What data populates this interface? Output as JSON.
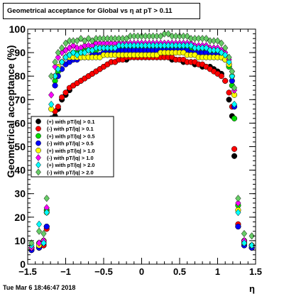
{
  "title": "Geometrical acceptance for Global vs  η at pT > 0.11",
  "footer": "Tue Mar  6 18:46:47 2018",
  "chart_data": {
    "type": "scatter",
    "title": "Geometrical acceptance for Global vs  η at pT > 0.11",
    "xlabel": "η",
    "ylabel": "Geometrical acceptance (%)",
    "xlim": [
      -1.5,
      1.5
    ],
    "ylim": [
      0,
      100
    ],
    "x_ticks": [
      "−1.5",
      "−1",
      "−0.5",
      "0",
      "0.5",
      "1",
      "1.5"
    ],
    "y_ticks": [
      "0",
      "10",
      "20",
      "30",
      "40",
      "50",
      "60",
      "70",
      "80",
      "90",
      "100"
    ],
    "grid": false,
    "legend_position": "left-middle",
    "series": [
      {
        "name": "(+) with pT/|q| > 0.1",
        "color": "#000000",
        "marker": "circle",
        "x": [
          -1.45,
          -1.35,
          -1.29,
          -1.25,
          -1.19,
          -1.14,
          -1.1,
          -1.05,
          -1.0,
          -0.95,
          -0.9,
          -0.85,
          -0.8,
          -0.75,
          -0.7,
          -0.65,
          -0.6,
          -0.55,
          -0.5,
          -0.45,
          -0.4,
          -0.35,
          -0.3,
          -0.25,
          -0.2,
          -0.15,
          -0.1,
          -0.05,
          0.0,
          0.05,
          0.1,
          0.15,
          0.2,
          0.25,
          0.3,
          0.35,
          0.4,
          0.45,
          0.5,
          0.55,
          0.6,
          0.65,
          0.7,
          0.75,
          0.8,
          0.85,
          0.9,
          0.95,
          1.0,
          1.05,
          1.1,
          1.15,
          1.19,
          1.22,
          1.27,
          1.35,
          1.45
        ],
        "y": [
          6,
          7,
          8,
          16,
          52,
          63,
          66,
          70,
          72,
          74,
          76,
          77,
          78,
          79,
          80,
          81,
          82,
          83,
          84,
          85,
          86,
          86,
          87,
          87,
          87,
          88,
          88,
          88,
          88,
          88,
          88,
          88,
          88,
          88,
          88,
          88,
          87,
          87,
          87,
          86,
          86,
          86,
          85,
          85,
          84,
          84,
          84,
          83,
          82,
          81,
          78,
          70,
          63,
          46,
          16,
          8,
          7
        ]
      },
      {
        "name": "(-) with pT/|q| > 0.1",
        "color": "#ff0000",
        "marker": "circle",
        "x": [
          -1.45,
          -1.35,
          -1.29,
          -1.25,
          -1.19,
          -1.14,
          -1.1,
          -1.05,
          -1.0,
          -0.95,
          -0.9,
          -0.85,
          -0.8,
          -0.75,
          -0.7,
          -0.65,
          -0.6,
          -0.55,
          -0.5,
          -0.45,
          -0.4,
          -0.35,
          -0.3,
          -0.25,
          -0.2,
          -0.15,
          -0.1,
          -0.05,
          0.0,
          0.05,
          0.1,
          0.15,
          0.2,
          0.25,
          0.3,
          0.35,
          0.4,
          0.45,
          0.5,
          0.55,
          0.6,
          0.65,
          0.7,
          0.75,
          0.8,
          0.85,
          0.9,
          0.95,
          1.0,
          1.05,
          1.1,
          1.15,
          1.19,
          1.22,
          1.27,
          1.35,
          1.45
        ],
        "y": [
          6,
          7,
          8,
          15,
          55,
          65,
          67,
          71,
          73,
          75,
          76,
          77,
          78,
          79,
          80,
          81,
          82,
          83,
          84,
          85,
          86,
          86,
          87,
          87,
          88,
          88,
          88,
          88,
          88,
          88,
          88,
          88,
          88,
          88,
          88,
          88,
          88,
          87,
          87,
          87,
          86,
          86,
          86,
          85,
          85,
          84,
          83,
          82,
          81,
          80,
          78,
          73,
          67,
          49,
          17,
          9,
          7
        ]
      },
      {
        "name": "(+) with pT/|q| > 0.5",
        "color": "#00dd00",
        "marker": "circle",
        "x": [
          -1.45,
          -1.35,
          -1.29,
          -1.25,
          -1.19,
          -1.14,
          -1.1,
          -1.05,
          -1.0,
          -0.95,
          -0.9,
          -0.85,
          -0.8,
          -0.75,
          -0.7,
          -0.65,
          -0.6,
          -0.55,
          -0.5,
          -0.45,
          -0.4,
          -0.35,
          -0.3,
          -0.25,
          -0.2,
          -0.15,
          -0.1,
          -0.05,
          0.0,
          0.05,
          0.1,
          0.15,
          0.2,
          0.25,
          0.3,
          0.35,
          0.4,
          0.45,
          0.5,
          0.55,
          0.6,
          0.65,
          0.7,
          0.75,
          0.8,
          0.85,
          0.9,
          0.95,
          1.0,
          1.05,
          1.1,
          1.15,
          1.19,
          1.22,
          1.27,
          1.35,
          1.45
        ],
        "y": [
          7,
          9,
          10,
          23,
          62,
          78,
          82,
          86,
          88,
          89,
          90,
          90,
          90,
          91,
          91,
          91,
          91,
          92,
          92,
          92,
          92,
          92,
          92,
          92,
          93,
          93,
          93,
          93,
          93,
          93,
          93,
          93,
          93,
          93,
          93,
          93,
          93,
          93,
          93,
          92,
          92,
          92,
          92,
          92,
          92,
          91,
          91,
          91,
          91,
          90,
          88,
          84,
          76,
          62,
          25,
          10,
          8
        ]
      },
      {
        "name": "(-) with pT/|q| > 0.5",
        "color": "#0000ff",
        "marker": "circle",
        "x": [
          -1.45,
          -1.35,
          -1.29,
          -1.25,
          -1.19,
          -1.14,
          -1.1,
          -1.05,
          -1.0,
          -0.95,
          -0.9,
          -0.85,
          -0.8,
          -0.75,
          -0.7,
          -0.65,
          -0.6,
          -0.55,
          -0.5,
          -0.45,
          -0.4,
          -0.35,
          -0.3,
          -0.25,
          -0.2,
          -0.15,
          -0.1,
          -0.05,
          0.0,
          0.05,
          0.1,
          0.15,
          0.2,
          0.25,
          0.3,
          0.35,
          0.4,
          0.45,
          0.5,
          0.55,
          0.6,
          0.65,
          0.7,
          0.75,
          0.8,
          0.85,
          0.9,
          0.95,
          1.0,
          1.05,
          1.1,
          1.15,
          1.19,
          1.22,
          1.27,
          1.35,
          1.45
        ],
        "y": [
          6,
          7,
          9,
          16,
          62,
          76,
          80,
          83,
          85,
          86,
          87,
          87,
          88,
          88,
          88,
          89,
          89,
          89,
          90,
          90,
          90,
          90,
          91,
          91,
          91,
          91,
          91,
          91,
          91,
          91,
          91,
          91,
          91,
          91,
          91,
          91,
          91,
          91,
          91,
          91,
          91,
          90,
          90,
          90,
          90,
          90,
          89,
          89,
          89,
          88,
          87,
          85,
          78,
          67,
          16,
          8,
          7
        ]
      },
      {
        "name": "(+) with pT/|q| > 1.0",
        "color": "#ffff00",
        "marker": "circle",
        "x": [
          -1.45,
          -1.35,
          -1.29,
          -1.25,
          -1.19,
          -1.14,
          -1.1,
          -1.05,
          -1.0,
          -0.95,
          -0.9,
          -0.85,
          -0.8,
          -0.75,
          -0.7,
          -0.65,
          -0.6,
          -0.55,
          -0.5,
          -0.45,
          -0.4,
          -0.35,
          -0.3,
          -0.25,
          -0.2,
          -0.15,
          -0.1,
          -0.05,
          0.0,
          0.05,
          0.1,
          0.15,
          0.2,
          0.25,
          0.3,
          0.35,
          0.4,
          0.45,
          0.5,
          0.55,
          0.6,
          0.65,
          0.7,
          0.75,
          0.8,
          0.85,
          0.9,
          0.95,
          1.0,
          1.05,
          1.1,
          1.15,
          1.19,
          1.22,
          1.27,
          1.35,
          1.45
        ],
        "y": [
          7,
          8,
          10,
          22,
          66,
          80,
          84,
          86,
          88,
          88,
          88,
          88,
          88,
          88,
          88,
          88,
          88,
          88,
          89,
          89,
          89,
          89,
          89,
          89,
          89,
          89,
          89,
          89,
          89,
          89,
          89,
          89,
          89,
          90,
          90,
          90,
          90,
          90,
          90,
          90,
          89,
          89,
          89,
          88,
          88,
          88,
          88,
          88,
          88,
          88,
          87,
          85,
          80,
          72,
          23,
          9,
          8
        ]
      },
      {
        "name": "(-) with pT/|q| > 1.0",
        "color": "#ff00ff",
        "marker": "diamond",
        "x": [
          -1.45,
          -1.35,
          -1.29,
          -1.25,
          -1.19,
          -1.14,
          -1.1,
          -1.05,
          -1.0,
          -0.95,
          -0.9,
          -0.85,
          -0.8,
          -0.75,
          -0.7,
          -0.65,
          -0.6,
          -0.55,
          -0.5,
          -0.45,
          -0.4,
          -0.35,
          -0.3,
          -0.25,
          -0.2,
          -0.15,
          -0.1,
          -0.05,
          0.0,
          0.05,
          0.1,
          0.15,
          0.2,
          0.25,
          0.3,
          0.35,
          0.4,
          0.45,
          0.5,
          0.55,
          0.6,
          0.65,
          0.7,
          0.75,
          0.8,
          0.85,
          0.9,
          0.95,
          1.0,
          1.05,
          1.1,
          1.15,
          1.19,
          1.22,
          1.27,
          1.35,
          1.45
        ],
        "y": [
          7,
          9,
          10,
          24,
          72,
          84,
          88,
          90,
          91,
          92,
          93,
          92,
          92,
          93,
          93,
          93,
          94,
          94,
          94,
          94,
          94,
          94,
          94,
          94,
          94,
          94,
          94,
          94,
          94,
          94,
          94,
          94,
          94,
          94,
          94,
          94,
          94,
          94,
          94,
          94,
          94,
          94,
          93,
          93,
          93,
          93,
          92,
          92,
          92,
          91,
          90,
          87,
          82,
          74,
          26,
          10,
          8
        ]
      },
      {
        "name": "(+) with pT/|q| > 2.0",
        "color": "#00ffff",
        "marker": "diamond",
        "x": [
          -1.45,
          -1.35,
          -1.29,
          -1.25,
          -1.19,
          -1.14,
          -1.1,
          -1.05,
          -1.0,
          -0.95,
          -0.9,
          -0.85,
          -0.8,
          -0.75,
          -0.7,
          -0.65,
          -0.6,
          -0.55,
          -0.5,
          -0.45,
          -0.4,
          -0.35,
          -0.3,
          -0.25,
          -0.2,
          -0.15,
          -0.1,
          -0.05,
          0.0,
          0.05,
          0.1,
          0.15,
          0.2,
          0.25,
          0.3,
          0.35,
          0.4,
          0.45,
          0.5,
          0.55,
          0.6,
          0.65,
          0.7,
          0.75,
          0.8,
          0.85,
          0.9,
          0.95,
          1.0,
          1.05,
          1.1,
          1.15,
          1.19,
          1.22,
          1.27,
          1.35,
          1.45
        ],
        "y": [
          8,
          17,
          9,
          22,
          68,
          80,
          83,
          86,
          88,
          89,
          90,
          89,
          90,
          90,
          91,
          91,
          92,
          92,
          92,
          92,
          92,
          92,
          93,
          93,
          93,
          93,
          93,
          93,
          93,
          93,
          93,
          93,
          93,
          93,
          93,
          93,
          93,
          93,
          93,
          93,
          93,
          93,
          92,
          92,
          92,
          92,
          91,
          91,
          91,
          90,
          89,
          86,
          80,
          68,
          22,
          9,
          8
        ]
      },
      {
        "name": "(-) with pT/|q| > 2.0",
        "color": "#66cc66",
        "marker": "diamond",
        "x": [
          -1.45,
          -1.35,
          -1.29,
          -1.25,
          -1.19,
          -1.14,
          -1.1,
          -1.05,
          -1.0,
          -0.95,
          -0.9,
          -0.85,
          -0.8,
          -0.75,
          -0.7,
          -0.65,
          -0.6,
          -0.55,
          -0.5,
          -0.45,
          -0.4,
          -0.35,
          -0.3,
          -0.25,
          -0.2,
          -0.15,
          -0.1,
          -0.05,
          0.0,
          0.05,
          0.1,
          0.15,
          0.2,
          0.25,
          0.3,
          0.35,
          0.4,
          0.45,
          0.5,
          0.55,
          0.6,
          0.65,
          0.7,
          0.75,
          0.8,
          0.85,
          0.9,
          0.95,
          1.0,
          1.05,
          1.1,
          1.15,
          1.19,
          1.22,
          1.27,
          1.35,
          1.45
        ],
        "y": [
          9,
          14,
          13,
          28,
          80,
          86,
          90,
          92,
          94,
          95,
          95,
          95,
          96,
          95,
          96,
          95,
          96,
          96,
          96,
          96,
          96,
          96,
          96,
          96,
          96,
          97,
          97,
          97,
          97,
          97,
          97,
          97,
          97,
          97,
          98,
          98,
          97,
          97,
          97,
          97,
          97,
          96,
          96,
          96,
          96,
          96,
          95,
          95,
          95,
          94,
          92,
          88,
          82,
          75,
          28,
          13,
          12
        ]
      }
    ]
  }
}
